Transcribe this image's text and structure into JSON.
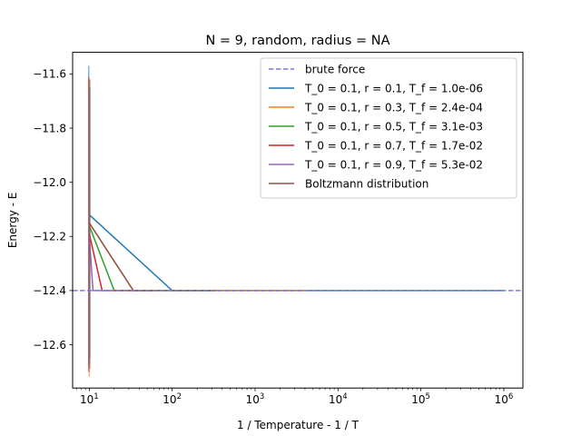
{
  "chart_data": {
    "type": "line",
    "title": "N = 9, random, radius = NA",
    "xlabel": "1 / Temperature - 1 / T",
    "ylabel": "Energy - E",
    "xscale": "log",
    "xlim": [
      6.3,
      1700000
    ],
    "ylim": [
      -12.76,
      -11.52
    ],
    "x_ticks": [
      {
        "value": 10,
        "base": "10",
        "exp": "1"
      },
      {
        "value": 100,
        "base": "10",
        "exp": "2"
      },
      {
        "value": 1000,
        "base": "10",
        "exp": "3"
      },
      {
        "value": 10000,
        "base": "10",
        "exp": "4"
      },
      {
        "value": 100000,
        "base": "10",
        "exp": "5"
      },
      {
        "value": 1000000,
        "base": "10",
        "exp": "6"
      }
    ],
    "y_ticks": [
      {
        "value": -11.6,
        "label": "−11.6"
      },
      {
        "value": -11.8,
        "label": "−11.8"
      },
      {
        "value": -12.0,
        "label": "−12.0"
      },
      {
        "value": -12.2,
        "label": "−12.2"
      },
      {
        "value": -12.4,
        "label": "−12.4"
      },
      {
        "value": -12.6,
        "label": "−12.6"
      }
    ],
    "grid": false,
    "legend_position": "top-right",
    "reference": {
      "name": "brute force",
      "y": -12.4,
      "color": "#7b7bf0"
    },
    "series": [
      {
        "name": "T_0 = 0.1, r = 0.1, T_f = 1.0e-06",
        "color": "#1f77b4",
        "x": [
          10,
          100,
          1000000
        ],
        "y": [
          -12.12,
          -12.4,
          -12.4
        ],
        "spike": {
          "x": 10,
          "y": [
            -12.68,
            -11.57
          ]
        }
      },
      {
        "name": "T_0 = 0.1, r = 0.3, T_f = 2.4e-04",
        "color": "#ff7f0e",
        "x": [
          10,
          34,
          4200
        ],
        "y": [
          -12.15,
          -12.4,
          -12.4
        ],
        "spike": {
          "x": 10,
          "y": [
            -12.72,
            -11.62
          ]
        }
      },
      {
        "name": "T_0 = 0.1, r = 0.5, T_f = 3.1e-03",
        "color": "#2ca02c",
        "x": [
          10,
          20,
          320
        ],
        "y": [
          -12.16,
          -12.4,
          -12.4
        ],
        "spike": {
          "x": 10,
          "y": [
            -12.65,
            -11.65
          ]
        }
      },
      {
        "name": "T_0 = 0.1, r = 0.7, T_f = 1.7e-02",
        "color": "#d62728",
        "x": [
          10,
          14.3,
          59
        ],
        "y": [
          -12.19,
          -12.4,
          -12.4
        ],
        "spike": {
          "x": 10,
          "y": [
            -12.7,
            -11.61
          ]
        }
      },
      {
        "name": "T_0 = 0.1, r = 0.9, T_f = 5.3e-02",
        "color": "#9467bd",
        "x": [
          10,
          11.1,
          19
        ],
        "y": [
          -12.2,
          -12.4,
          -12.4
        ],
        "spike": {
          "x": 10,
          "y": [
            -12.67,
            -11.66
          ]
        }
      },
      {
        "name": "Boltzmann distribution",
        "color": "#8c564b",
        "x": [
          10,
          34,
          340
        ],
        "y": [
          -12.15,
          -12.4,
          -12.4
        ],
        "spike": {
          "x": 10,
          "y": [
            -12.69,
            -11.62
          ]
        }
      }
    ]
  }
}
